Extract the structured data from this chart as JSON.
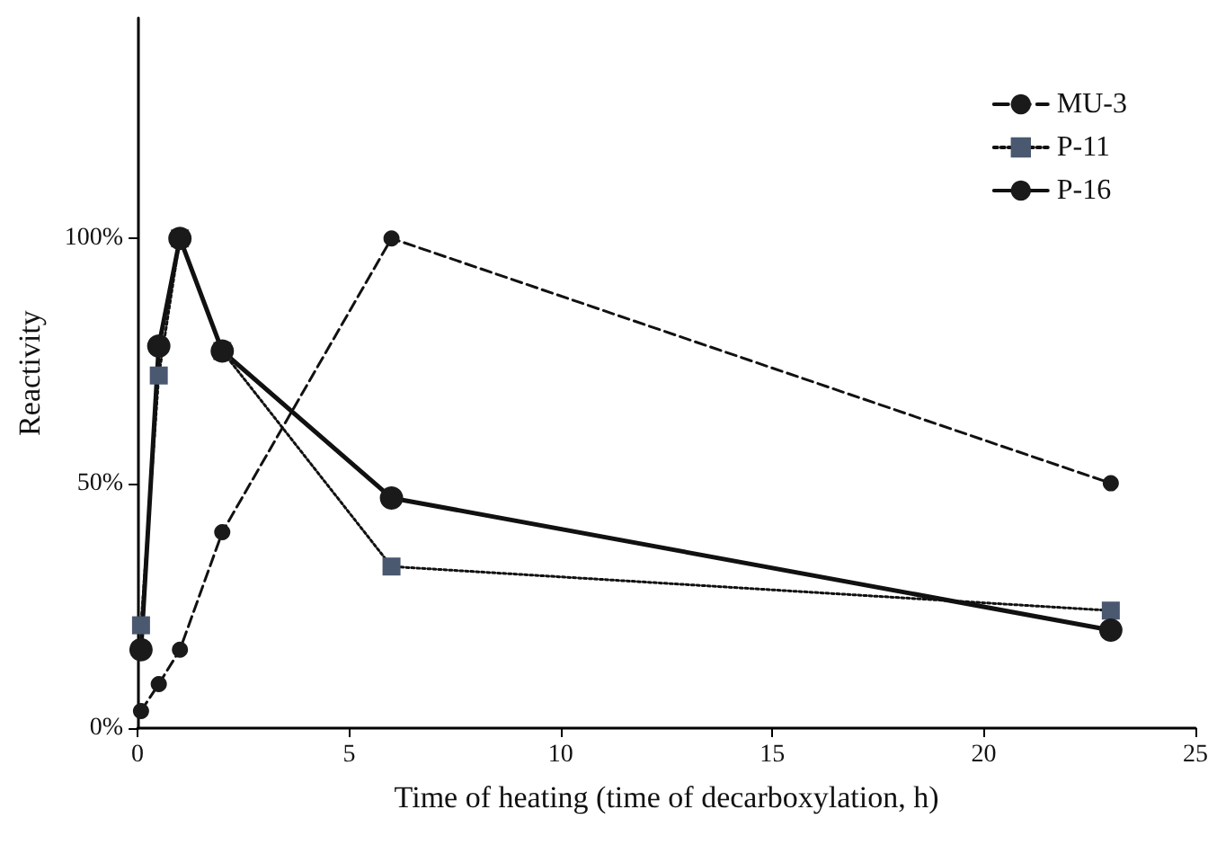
{
  "chart_data": {
    "type": "line",
    "xlabel": "Time of heating (time of decarboxylation, h)",
    "ylabel": "Reactivity",
    "xlim": [
      0,
      25
    ],
    "xticks": [
      0,
      5,
      10,
      15,
      20,
      25
    ],
    "ylim": [
      0,
      145
    ],
    "yticks": [
      {
        "value": 0,
        "label": "0%"
      },
      {
        "value": 50,
        "label": "50%"
      },
      {
        "value": 100,
        "label": "100%"
      }
    ],
    "grid": false,
    "legend": "top right",
    "series": [
      {
        "name": "MU-3",
        "color": "#1a1a1a",
        "marker": "circle",
        "line_style": "dashed",
        "x": [
          0.08,
          0.5,
          1,
          2,
          6,
          23
        ],
        "values": [
          3.5,
          9,
          16,
          40,
          100,
          50
        ]
      },
      {
        "name": "P-11",
        "color": "#4a5870",
        "marker": "square",
        "line_style": "dotted",
        "x": [
          0.08,
          0.5,
          1,
          2,
          6,
          23
        ],
        "values": [
          21,
          72,
          100,
          77,
          33,
          24
        ]
      },
      {
        "name": "P-16",
        "color": "#1a1a1a",
        "marker": "circle",
        "line_style": "solid",
        "x": [
          0.08,
          0.5,
          1,
          2,
          6,
          23
        ],
        "values": [
          16,
          78,
          100,
          77,
          47,
          20
        ]
      }
    ]
  }
}
